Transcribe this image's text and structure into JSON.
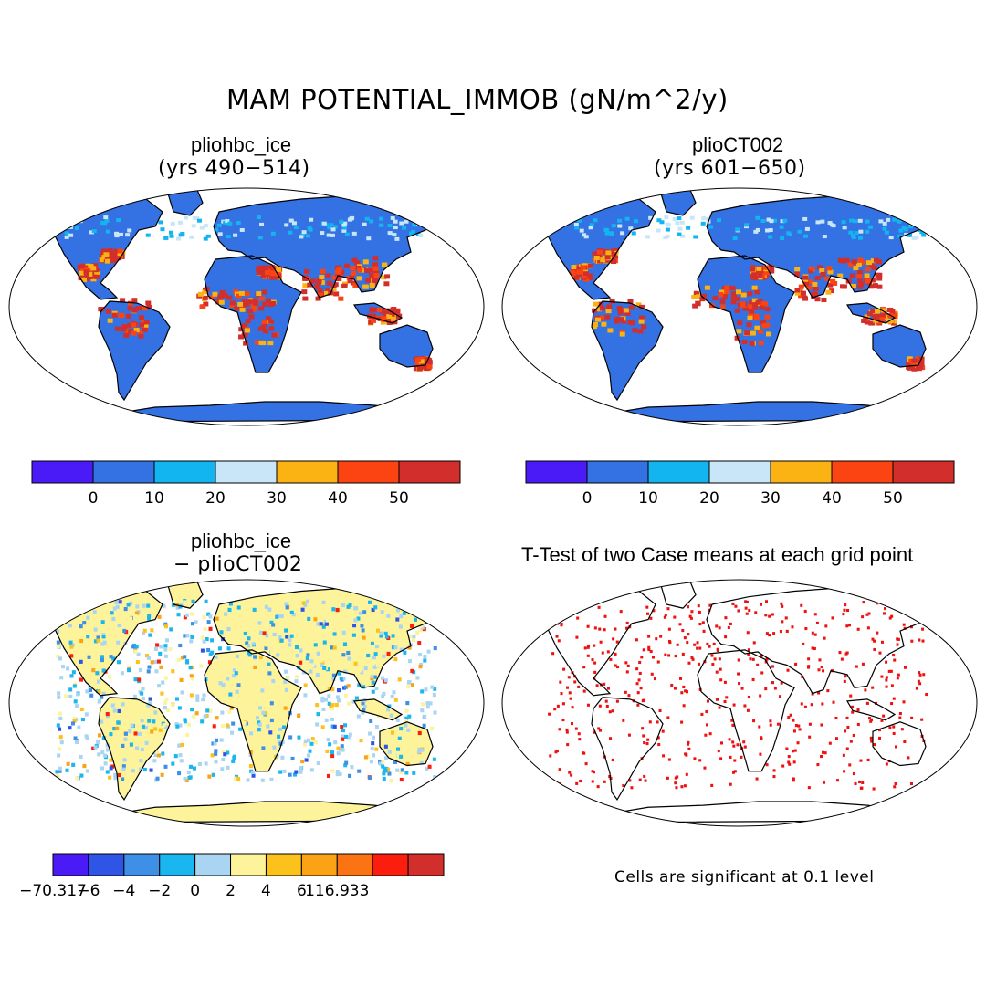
{
  "title": "MAM POTENTIAL_IMMOB (gN/m^2/y)",
  "panels": {
    "p1": {
      "title": "pliohbc_ice",
      "subtitle": "(yrs 490−514)"
    },
    "p2": {
      "title": "plioCT002",
      "subtitle": "(yrs 601−650)"
    },
    "p3": {
      "title": "pliohbc_ice",
      "subtitle": "− plioCT002"
    },
    "p4": {
      "title": "T-Test of two Case means at each grid point",
      "note": "Cells are significant at 0.1 level"
    }
  },
  "colorbar_top": {
    "colors": [
      "#4b1bf7",
      "#3471e3",
      "#13b5f0",
      "#c8e6f8",
      "#fbb313",
      "#fb4412",
      "#d22f2c"
    ],
    "labels": [
      "0",
      "10",
      "20",
      "30",
      "40",
      "50"
    ]
  },
  "colorbar_diff": {
    "colors": [
      "#4b1bf7",
      "#2f55e6",
      "#3e8fe6",
      "#19b6f0",
      "#a9d5f2",
      "#fcf39a",
      "#fcc11b",
      "#fba314",
      "#fb7312",
      "#fb1e0e",
      "#d22f2c"
    ],
    "labels": [
      "−70.317",
      "−6",
      "−4",
      "−2",
      "0",
      "2",
      "4",
      "6",
      "116.933"
    ]
  },
  "significance_color": "#ee1111"
}
